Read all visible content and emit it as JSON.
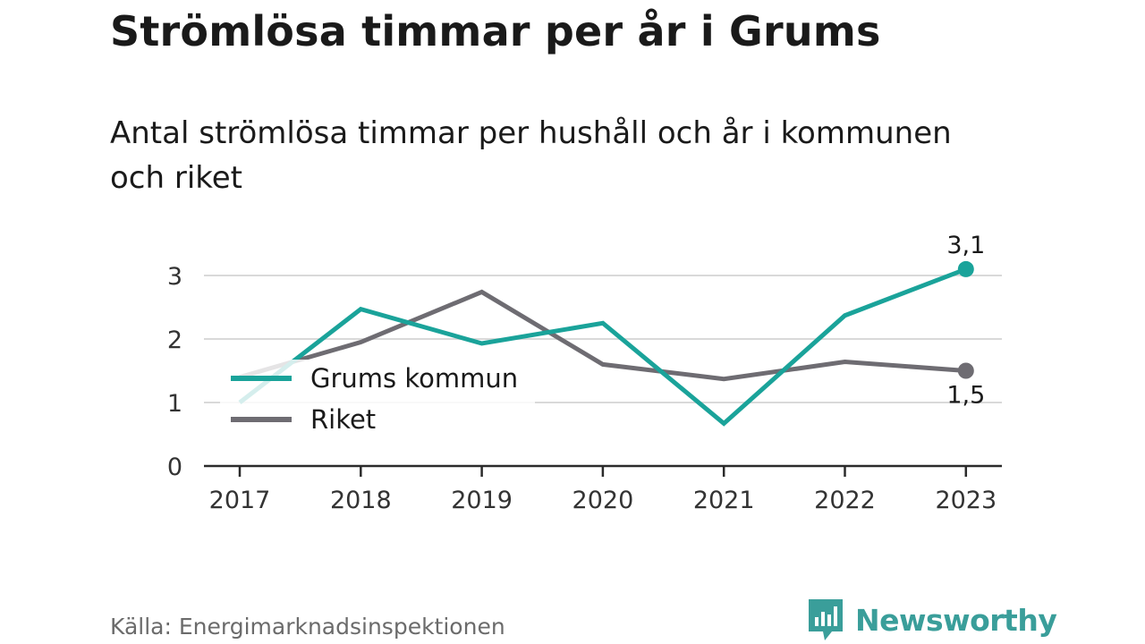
{
  "title": "Strömlösa timmar per år i Grums",
  "subtitle": "Antal strömlösa timmar per hushåll och år i kommunen och riket",
  "source": "Källa: Energimarknadsinspektionen",
  "brand": "Newsworthy",
  "colors": {
    "grums": "#1aa39a",
    "riket": "#6e6c72",
    "grid": "#d9d9d9",
    "brand": "#3a9e9a"
  },
  "chart_data": {
    "type": "line",
    "x": [
      "2017",
      "2018",
      "2019",
      "2020",
      "2021",
      "2022",
      "2023"
    ],
    "ylim": [
      0,
      3.3
    ],
    "yticks": [
      0,
      1,
      2,
      3
    ],
    "grid": true,
    "legend_position": "left",
    "series": [
      {
        "name": "Grums kommun",
        "values": [
          1.0,
          2.47,
          1.93,
          2.25,
          0.67,
          2.37,
          3.1
        ],
        "end_label": "3,1"
      },
      {
        "name": "Riket",
        "values": [
          1.4,
          1.95,
          2.74,
          1.6,
          1.37,
          1.64,
          1.5
        ],
        "end_label": "1,5"
      }
    ]
  }
}
